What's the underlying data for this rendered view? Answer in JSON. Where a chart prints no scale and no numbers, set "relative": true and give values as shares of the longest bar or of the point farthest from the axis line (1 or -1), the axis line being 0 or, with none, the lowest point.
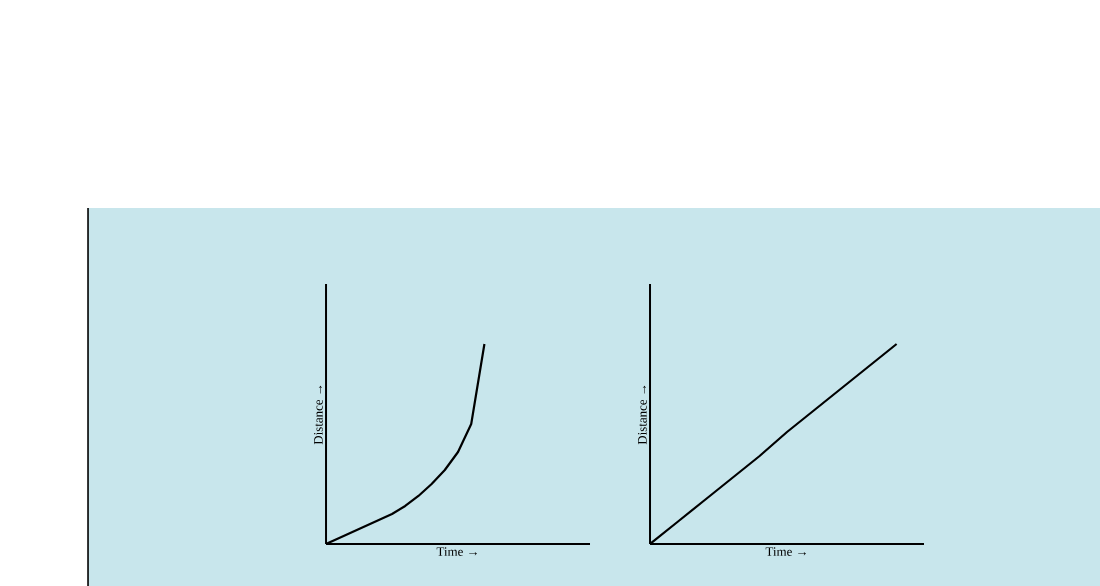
{
  "chart_data": [
    {
      "type": "line",
      "xlabel": "Time →",
      "ylabel": "Distance →",
      "relative": true,
      "color": "#000000",
      "categories": [
        null,
        null,
        null,
        null,
        null,
        null,
        null,
        null,
        null,
        null,
        null,
        null,
        null,
        null,
        null,
        null,
        null,
        null,
        null,
        null,
        null
      ],
      "values": [
        0,
        0.03,
        0.06,
        0.09,
        0.12,
        0.15,
        0.19,
        0.24,
        0.3,
        0.37,
        0.46,
        0.6,
        1.0,
        null,
        null,
        null,
        null,
        null,
        null,
        null,
        null
      ]
    },
    {
      "type": "line",
      "xlabel": "Time →",
      "ylabel": "Distance →",
      "relative": true,
      "color": "#000000",
      "categories": [
        null,
        null,
        null,
        null,
        null,
        null,
        null,
        null,
        null,
        null,
        null
      ],
      "values": [
        0,
        0.11,
        0.22,
        0.33,
        0.44,
        0.56,
        0.67,
        0.78,
        0.89,
        1.0,
        null
      ]
    }
  ]
}
